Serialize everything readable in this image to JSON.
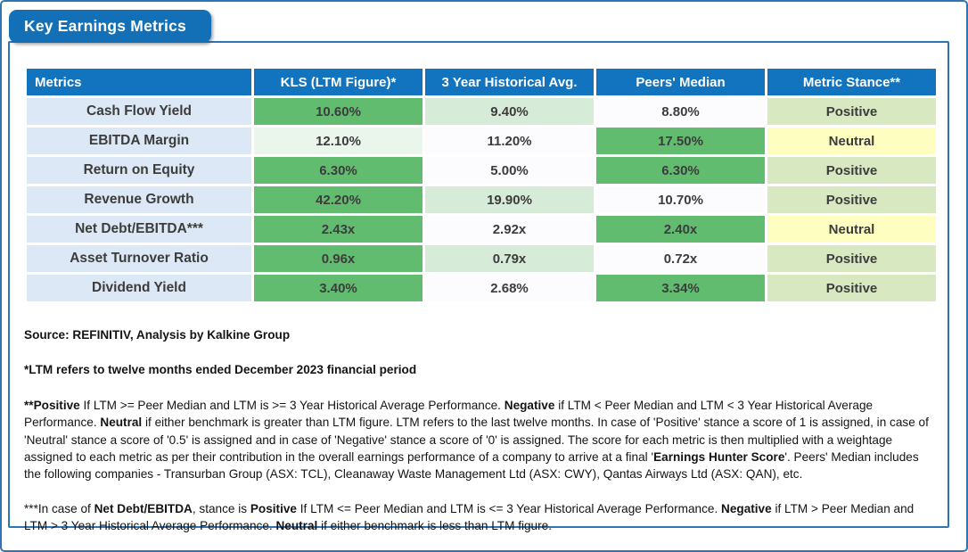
{
  "title": "Key Earnings Metrics",
  "colors": {
    "frame-blue": "#2E75B6",
    "tab-blue": "#1370B7",
    "header-blue": "#1273BE",
    "rowhead-blue": "#DCE8F5",
    "metric-blue": "#1272C4",
    "green": "#62BC70",
    "lightgreen": "#D6ECD9",
    "palegreen": "#EAF5EC",
    "offwhite": "#FCFCFF",
    "positive": "#D8E9C2",
    "neutral": "#FEFEC1"
  },
  "table": {
    "headers": [
      "Metrics",
      "KLS (LTM Figure)*",
      "3 Year Historical Avg.",
      "Peers' Median",
      "Metric Stance**"
    ],
    "rows": [
      {
        "metric": "Cash Flow Yield",
        "cells": [
          {
            "v": "10.60%",
            "bg": "green"
          },
          {
            "v": "9.40%",
            "bg": "lightgreen"
          },
          {
            "v": "8.80%",
            "bg": "white"
          },
          {
            "v": "Positive",
            "bg": "positive"
          }
        ]
      },
      {
        "metric": "EBITDA Margin",
        "cells": [
          {
            "v": "12.10%",
            "bg": "palegreen"
          },
          {
            "v": "11.20%",
            "bg": "white"
          },
          {
            "v": "17.50%",
            "bg": "green"
          },
          {
            "v": "Neutral",
            "bg": "neutral"
          }
        ]
      },
      {
        "metric": "Return on Equity",
        "cells": [
          {
            "v": "6.30%",
            "bg": "green"
          },
          {
            "v": "5.00%",
            "bg": "white"
          },
          {
            "v": "6.30%",
            "bg": "green"
          },
          {
            "v": "Positive",
            "bg": "positive"
          }
        ]
      },
      {
        "metric": "Revenue Growth",
        "cells": [
          {
            "v": "42.20%",
            "bg": "green"
          },
          {
            "v": "19.90%",
            "bg": "lightgreen"
          },
          {
            "v": "10.70%",
            "bg": "white"
          },
          {
            "v": "Positive",
            "bg": "positive"
          }
        ]
      },
      {
        "metric": "Net Debt/EBITDA***",
        "cells": [
          {
            "v": "2.43x",
            "bg": "green"
          },
          {
            "v": "2.92x",
            "bg": "white"
          },
          {
            "v": "2.40x",
            "bg": "green"
          },
          {
            "v": "Neutral",
            "bg": "neutral"
          }
        ]
      },
      {
        "metric": "Asset Turnover Ratio",
        "cells": [
          {
            "v": "0.96x",
            "bg": "green"
          },
          {
            "v": "0.79x",
            "bg": "lightgreen"
          },
          {
            "v": "0.72x",
            "bg": "white"
          },
          {
            "v": "Positive",
            "bg": "positive"
          }
        ]
      },
      {
        "metric": "Dividend Yield",
        "cells": [
          {
            "v": "3.40%",
            "bg": "green"
          },
          {
            "v": "2.68%",
            "bg": "white"
          },
          {
            "v": "3.34%",
            "bg": "green"
          },
          {
            "v": "Positive",
            "bg": "positive"
          }
        ]
      }
    ]
  },
  "footnotes": [
    {
      "all_bold": true,
      "segments": [
        {
          "t": "Source: REFINITIV, Analysis by Kalkine Group",
          "b": true
        }
      ]
    },
    {
      "all_bold": true,
      "segments": [
        {
          "t": "*LTM refers to twelve months ended December 2023 financial period",
          "b": true
        }
      ]
    },
    {
      "all_bold": false,
      "segments": [
        {
          "t": "**Positive",
          "b": true
        },
        {
          "t": " If LTM >= Peer Median and LTM is >= 3 Year Historical Average Performance. ",
          "b": false
        },
        {
          "t": "Negative",
          "b": true
        },
        {
          "t": " if LTM < Peer Median and LTM < 3 Year Historical Average Performance. ",
          "b": false
        },
        {
          "t": "Neutral",
          "b": true
        },
        {
          "t": " if either benchmark is greater than LTM figure. LTM refers to the last twelve months. In case of 'Positive' stance a score of 1 is assigned, in case of 'Neutral' stance a score of '0.5' is assigned and in case of 'Negative' stance a score of '0' is assigned. The score for each metric is then multiplied with a weightage assigned to each metric as per their contribution in the overall earnings performance of a company to arrive at a final '",
          "b": false
        },
        {
          "t": "Earnings Hunter Score",
          "b": true
        },
        {
          "t": "'. Peers' Median includes the following companies - Transurban Group (ASX: TCL), Cleanaway Waste Management Ltd (ASX: CWY), Qantas Airways Ltd (ASX: QAN), etc.",
          "b": false
        }
      ]
    },
    {
      "all_bold": false,
      "segments": [
        {
          "t": "***In case of ",
          "b": false
        },
        {
          "t": "Net Debt/EBITDA",
          "b": true
        },
        {
          "t": ", stance is ",
          "b": false
        },
        {
          "t": "Positive",
          "b": true
        },
        {
          "t": " If LTM <= Peer Median and LTM is <= 3 Year Historical Average Performance. ",
          "b": false
        },
        {
          "t": "Negative",
          "b": true
        },
        {
          "t": " if LTM > Peer Median and LTM > 3 Year Historical Average Performance. ",
          "b": false
        },
        {
          "t": "Neutral",
          "b": true
        },
        {
          "t": " if either benchmark is less than LTM figure.",
          "b": false
        }
      ]
    }
  ]
}
